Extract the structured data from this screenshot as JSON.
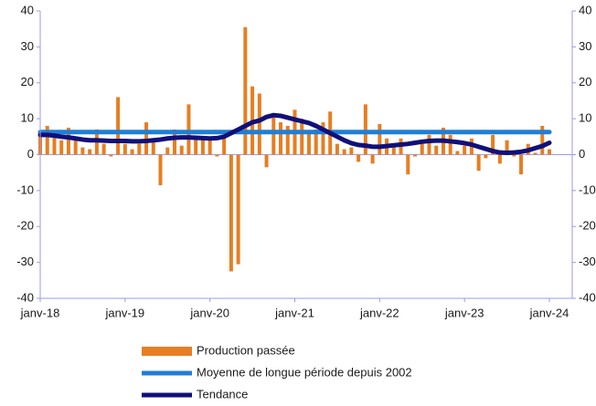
{
  "chart_data": {
    "type": "bar",
    "categories": [
      "janv-18",
      null,
      null,
      null,
      null,
      null,
      null,
      null,
      null,
      null,
      null,
      null,
      "janv-19",
      null,
      null,
      null,
      null,
      null,
      null,
      null,
      null,
      null,
      null,
      null,
      "janv-20",
      null,
      null,
      null,
      null,
      null,
      null,
      null,
      null,
      null,
      null,
      null,
      "janv-21",
      null,
      null,
      null,
      null,
      null,
      null,
      null,
      null,
      null,
      null,
      null,
      "janv-22",
      null,
      null,
      null,
      null,
      null,
      null,
      null,
      null,
      null,
      null,
      null,
      "janv-23",
      null,
      null,
      null,
      null,
      null,
      null,
      null,
      null,
      null,
      null,
      null,
      "janv-24"
    ],
    "series": [
      {
        "name": "Production passée",
        "type": "bar",
        "color": "#e67e22",
        "values": [
          6,
          8,
          5,
          4,
          7.5,
          4,
          2,
          1.5,
          7,
          3,
          -0.5,
          16,
          3,
          1.5,
          3,
          9,
          3.5,
          -8.5,
          2,
          7,
          2.5,
          14,
          4.5,
          5,
          4,
          -0.5,
          5,
          -32.5,
          -30.5,
          35.5,
          19,
          17,
          -3.5,
          11,
          9,
          8,
          12.5,
          10,
          6,
          7,
          9,
          12,
          3,
          1.5,
          2,
          -2,
          14,
          -2.5,
          8.5,
          4.5,
          2,
          4.5,
          -5.5,
          -0.5,
          3,
          5.5,
          2.5,
          7.5,
          5.5,
          1,
          2.5,
          4.5,
          -4.5,
          -1,
          5.5,
          -2.5,
          4,
          -0.5,
          -5.5,
          3,
          0.5,
          8,
          1.5
        ]
      },
      {
        "name": "Moyenne de longue période depuis 2002",
        "type": "line",
        "color": "#1f7fd4",
        "values": [
          6.3,
          6.3,
          6.3,
          6.3,
          6.3,
          6.3,
          6.3,
          6.3,
          6.3,
          6.3,
          6.3,
          6.3,
          6.3,
          6.3,
          6.3,
          6.3,
          6.3,
          6.3,
          6.3,
          6.3,
          6.3,
          6.3,
          6.3,
          6.3,
          6.3,
          6.3,
          6.3,
          6.3,
          6.3,
          6.3,
          6.3,
          6.3,
          6.3,
          6.3,
          6.3,
          6.3,
          6.3,
          6.3,
          6.3,
          6.3,
          6.3,
          6.3,
          6.3,
          6.3,
          6.3,
          6.3,
          6.3,
          6.3,
          6.3,
          6.3,
          6.3,
          6.3,
          6.3,
          6.3,
          6.3,
          6.3,
          6.3,
          6.3,
          6.3,
          6.3,
          6.3,
          6.3,
          6.3,
          6.3,
          6.3,
          6.3,
          6.3,
          6.3,
          6.3,
          6.3,
          6.3,
          6.3,
          6.3
        ]
      },
      {
        "name": "Tendance",
        "type": "line",
        "color": "#10107a",
        "values": [
          5.5,
          5.5,
          5.3,
          5.0,
          4.8,
          4.5,
          4.2,
          4.0,
          4.0,
          3.9,
          3.8,
          3.8,
          3.8,
          3.7,
          3.7,
          3.8,
          4.0,
          4.2,
          4.5,
          4.7,
          4.8,
          4.8,
          4.7,
          4.6,
          4.5,
          4.6,
          5.0,
          6.0,
          7.0,
          8.0,
          9.0,
          9.5,
          10.5,
          11.0,
          10.8,
          10.3,
          9.8,
          9.3,
          8.8,
          8.0,
          7.0,
          6.0,
          5.0,
          4.0,
          3.2,
          2.7,
          2.5,
          2.2,
          2.2,
          2.4,
          2.6,
          2.8,
          3.0,
          3.3,
          3.6,
          3.8,
          3.9,
          3.9,
          3.7,
          3.5,
          3.2,
          2.8,
          2.2,
          1.6,
          1.0,
          0.6,
          0.5,
          0.6,
          0.8,
          1.2,
          1.8,
          2.4,
          3.3
        ]
      }
    ],
    "ylim": [
      -40,
      40
    ],
    "yticks": [
      -40,
      -30,
      -20,
      -10,
      0,
      10,
      20,
      30,
      40
    ],
    "y2lim": [
      -40,
      40
    ],
    "y2ticks": [
      -40,
      -30,
      -20,
      -10,
      0,
      10,
      20,
      30,
      40
    ],
    "legend": "bottom"
  }
}
